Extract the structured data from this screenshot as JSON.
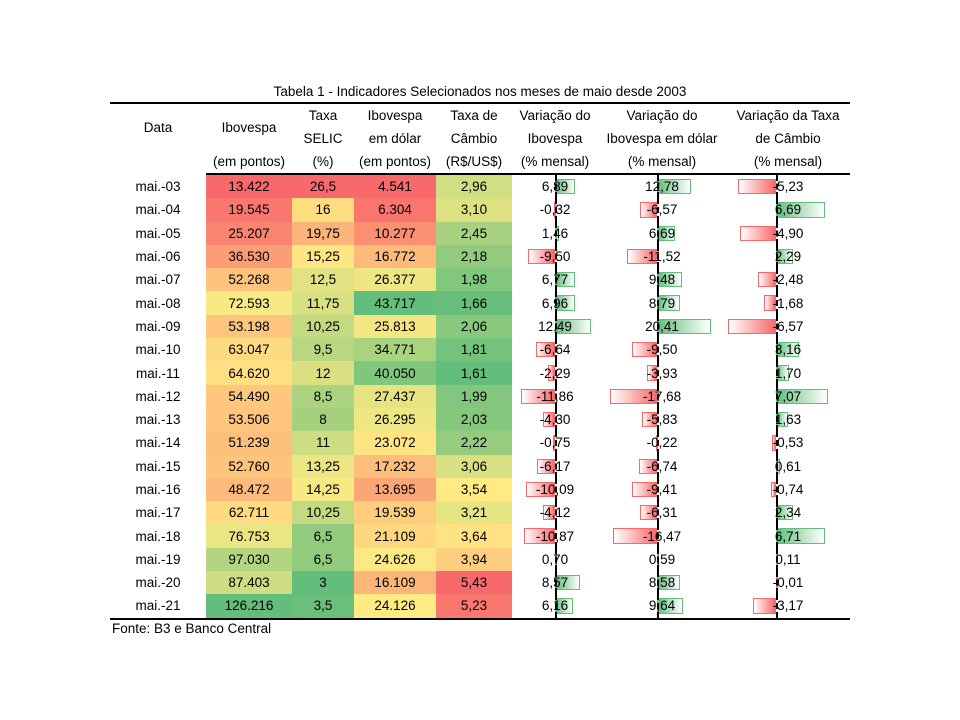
{
  "title": "Tabela 1 - Indicadores Selecionados nos meses de maio desde 2003",
  "headers": {
    "data": "Data",
    "ibovespa": [
      "Ibovespa",
      "(em pontos)"
    ],
    "selic": [
      "Taxa",
      "SELIC",
      "(%)"
    ],
    "ibov_usd": [
      "Ibovespa",
      "em dólar",
      "(em pontos)"
    ],
    "cambio": [
      "Taxa de",
      "Câmbio",
      "(R$/US$)"
    ],
    "var_ibov": [
      "Variação do",
      "Ibovespa",
      "(% mensal)"
    ],
    "var_ibov_usd": [
      "Variação do",
      "Ibovespa em dólar",
      "(% mensal)"
    ],
    "var_cambio": [
      "Variação da Taxa",
      "de Câmbio",
      "(% mensal)"
    ]
  },
  "rows": [
    {
      "date": "mai.-03",
      "ibov": "13.422",
      "selic": "26,5",
      "ibov_usd": "4.541",
      "cambio": "2,96",
      "var_ibov": "6,89",
      "var_ibov_usd": "12,78",
      "var_cambio": "-5,23"
    },
    {
      "date": "mai.-04",
      "ibov": "19.545",
      "selic": "16",
      "ibov_usd": "6.304",
      "cambio": "3,10",
      "var_ibov": "-0,32",
      "var_ibov_usd": "-6,57",
      "var_cambio": "6,69"
    },
    {
      "date": "mai.-05",
      "ibov": "25.207",
      "selic": "19,75",
      "ibov_usd": "10.277",
      "cambio": "2,45",
      "var_ibov": "1,46",
      "var_ibov_usd": "6,69",
      "var_cambio": "-4,90"
    },
    {
      "date": "mai.-06",
      "ibov": "36.530",
      "selic": "15,25",
      "ibov_usd": "16.772",
      "cambio": "2,18",
      "var_ibov": "-9,50",
      "var_ibov_usd": "-11,52",
      "var_cambio": "2,29"
    },
    {
      "date": "mai.-07",
      "ibov": "52.268",
      "selic": "12,5",
      "ibov_usd": "26.377",
      "cambio": "1,98",
      "var_ibov": "6,77",
      "var_ibov_usd": "9,48",
      "var_cambio": "-2,48"
    },
    {
      "date": "mai.-08",
      "ibov": "72.593",
      "selic": "11,75",
      "ibov_usd": "43.717",
      "cambio": "1,66",
      "var_ibov": "6,96",
      "var_ibov_usd": "8,79",
      "var_cambio": "-1,68"
    },
    {
      "date": "mai.-09",
      "ibov": "53.198",
      "selic": "10,25",
      "ibov_usd": "25.813",
      "cambio": "2,06",
      "var_ibov": "12,49",
      "var_ibov_usd": "20,41",
      "var_cambio": "-6,57"
    },
    {
      "date": "mai.-10",
      "ibov": "63.047",
      "selic": "9,5",
      "ibov_usd": "34.771",
      "cambio": "1,81",
      "var_ibov": "-6,64",
      "var_ibov_usd": "-9,50",
      "var_cambio": "3,16"
    },
    {
      "date": "mai.-11",
      "ibov": "64.620",
      "selic": "12",
      "ibov_usd": "40.050",
      "cambio": "1,61",
      "var_ibov": "-2,29",
      "var_ibov_usd": "-3,93",
      "var_cambio": "1,70"
    },
    {
      "date": "mai.-12",
      "ibov": "54.490",
      "selic": "8,5",
      "ibov_usd": "27.437",
      "cambio": "1,99",
      "var_ibov": "-11,86",
      "var_ibov_usd": "-17,68",
      "var_cambio": "7,07"
    },
    {
      "date": "mai.-13",
      "ibov": "53.506",
      "selic": "8",
      "ibov_usd": "26.295",
      "cambio": "2,03",
      "var_ibov": "-4,30",
      "var_ibov_usd": "-5,83",
      "var_cambio": "1,63"
    },
    {
      "date": "mai.-14",
      "ibov": "51.239",
      "selic": "11",
      "ibov_usd": "23.072",
      "cambio": "2,22",
      "var_ibov": "-0,75",
      "var_ibov_usd": "-0,22",
      "var_cambio": "-0,53"
    },
    {
      "date": "mai.-15",
      "ibov": "52.760",
      "selic": "13,25",
      "ibov_usd": "17.232",
      "cambio": "3,06",
      "var_ibov": "-6,17",
      "var_ibov_usd": "-6,74",
      "var_cambio": "0,61"
    },
    {
      "date": "mai.-16",
      "ibov": "48.472",
      "selic": "14,25",
      "ibov_usd": "13.695",
      "cambio": "3,54",
      "var_ibov": "-10,09",
      "var_ibov_usd": "-9,41",
      "var_cambio": "-0,74"
    },
    {
      "date": "mai.-17",
      "ibov": "62.711",
      "selic": "10,25",
      "ibov_usd": "19.539",
      "cambio": "3,21",
      "var_ibov": "-4,12",
      "var_ibov_usd": "-6,31",
      "var_cambio": "2,34"
    },
    {
      "date": "mai.-18",
      "ibov": "76.753",
      "selic": "6,5",
      "ibov_usd": "21.109",
      "cambio": "3,64",
      "var_ibov": "-10,87",
      "var_ibov_usd": "-16,47",
      "var_cambio": "6,71"
    },
    {
      "date": "mai.-19",
      "ibov": "97.030",
      "selic": "6,5",
      "ibov_usd": "24.626",
      "cambio": "3,94",
      "var_ibov": "0,70",
      "var_ibov_usd": "0,59",
      "var_cambio": "0,11"
    },
    {
      "date": "mai.-20",
      "ibov": "87.403",
      "selic": "3",
      "ibov_usd": "16.109",
      "cambio": "5,43",
      "var_ibov": "8,57",
      "var_ibov_usd": "8,58",
      "var_cambio": "-0,01"
    },
    {
      "date": "mai.-21",
      "ibov": "126.216",
      "selic": "3,5",
      "ibov_usd": "24.126",
      "cambio": "5,23",
      "var_ibov": "6,16",
      "var_ibov_usd": "9,64",
      "var_cambio": "-3,17"
    }
  ],
  "source": "Fonte: B3 e Banco Central",
  "colors": {
    "scale_low": "#f8696b",
    "scale_mid": "#ffeb84",
    "scale_high": "#63be7b",
    "bar_negative": "#f8696b",
    "bar_positive": "#63be7b"
  }
}
